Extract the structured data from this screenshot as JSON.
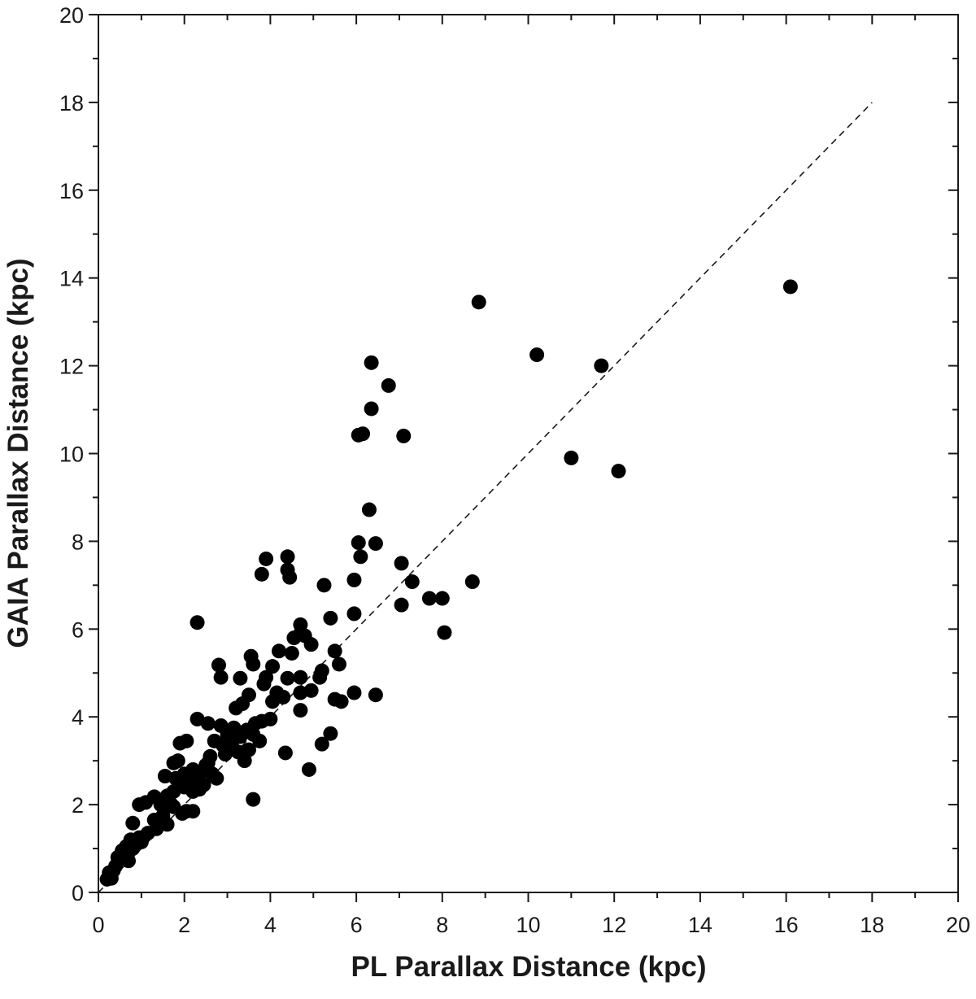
{
  "chart_data": {
    "type": "scatter",
    "xlabel": "PL Parallax Distance (kpc)",
    "ylabel": "GAIA Parallax Distance (kpc)",
    "xlim": [
      0,
      20
    ],
    "ylim": [
      0,
      20
    ],
    "xticks": [
      0,
      2,
      4,
      6,
      8,
      10,
      12,
      14,
      16,
      18,
      20
    ],
    "yticks": [
      0,
      2,
      4,
      6,
      8,
      10,
      12,
      14,
      16,
      18,
      20
    ],
    "color": "#000000",
    "x": [
      16.1,
      8.85,
      10.2,
      11.7,
      6.35,
      6.75,
      6.35,
      6.05,
      6.15,
      7.1,
      11.0,
      12.1,
      6.3,
      6.05,
      6.45,
      6.1,
      3.9,
      4.4,
      4.4,
      4.45,
      3.8,
      7.05,
      5.95,
      8.7,
      7.3,
      5.25,
      7.7,
      8.0,
      7.05,
      5.95,
      5.4,
      2.3,
      8.05,
      4.7,
      4.7,
      4.8,
      4.55,
      4.95,
      4.2,
      4.5,
      5.5,
      5.6,
      3.55,
      2.8,
      3.6,
      4.05,
      3.9,
      2.85,
      3.3,
      4.4,
      5.15,
      5.2,
      4.7,
      3.85,
      4.95,
      4.7,
      4.15,
      4.3,
      5.95,
      6.45,
      3.5,
      5.5,
      5.65,
      4.05,
      4.7,
      3.35,
      3.2,
      4.0,
      3.8,
      2.3,
      2.55,
      2.85,
      3.15,
      3.45,
      3.65,
      3.0,
      3.3,
      3.75,
      2.7,
      2.05,
      1.9,
      5.4,
      5.2,
      4.35,
      3.25,
      2.95,
      3.5,
      2.6,
      2.55,
      1.85,
      1.75,
      2.2,
      2.4,
      2.0,
      1.55,
      1.8,
      2.75,
      2.15,
      2.45,
      2.0,
      1.75,
      2.35,
      1.6,
      1.3,
      1.1,
      0.95,
      1.45,
      1.75,
      2.05,
      1.95,
      1.5,
      1.3,
      1.6,
      1.35,
      0.8,
      1.15,
      0.95,
      1.0,
      0.75,
      0.65,
      0.8,
      0.55,
      0.45,
      0.6,
      0.7,
      0.4,
      0.35,
      0.25,
      0.3,
      0.2,
      4.9,
      3.6,
      2.5,
      2.65,
      3.1,
      3.6,
      2.9,
      3.4,
      2.25,
      2.2,
      1.7,
      2.2
    ],
    "values": [
      13.8,
      13.45,
      12.25,
      12.0,
      12.07,
      11.55,
      11.02,
      10.42,
      10.45,
      10.4,
      9.9,
      9.6,
      8.72,
      7.97,
      7.95,
      7.65,
      7.6,
      7.65,
      7.35,
      7.18,
      7.25,
      7.5,
      7.12,
      7.08,
      7.08,
      7.0,
      6.7,
      6.7,
      6.55,
      6.35,
      6.25,
      6.15,
      5.92,
      6.1,
      5.9,
      5.85,
      5.8,
      5.65,
      5.5,
      5.45,
      5.5,
      5.2,
      5.38,
      5.18,
      5.2,
      5.15,
      4.9,
      4.9,
      4.88,
      4.88,
      4.9,
      5.05,
      4.9,
      4.75,
      4.6,
      4.55,
      4.55,
      4.45,
      4.55,
      4.5,
      4.5,
      4.4,
      4.35,
      4.35,
      4.15,
      4.3,
      4.2,
      3.95,
      3.9,
      3.95,
      3.85,
      3.8,
      3.75,
      3.7,
      3.85,
      3.6,
      3.55,
      3.45,
      3.45,
      3.45,
      3.4,
      3.62,
      3.38,
      3.18,
      3.2,
      3.15,
      3.25,
      3.1,
      2.95,
      3.0,
      2.95,
      2.8,
      2.75,
      2.7,
      2.65,
      2.6,
      2.6,
      2.5,
      2.45,
      2.4,
      2.3,
      2.35,
      2.2,
      2.18,
      2.05,
      2.0,
      2.0,
      1.95,
      1.85,
      1.8,
      1.75,
      1.65,
      1.55,
      1.45,
      1.58,
      1.35,
      1.25,
      1.15,
      1.2,
      1.05,
      1.0,
      0.95,
      0.8,
      0.78,
      0.72,
      0.6,
      0.5,
      0.45,
      0.32,
      0.3,
      2.8,
      2.12,
      2.9,
      2.7,
      3.35,
      3.6,
      3.35,
      3.0,
      2.6,
      2.3,
      2.0,
      1.85
    ],
    "reference_line": {
      "x": [
        0,
        18
      ],
      "values": [
        0,
        18
      ],
      "style": "dashed"
    }
  }
}
